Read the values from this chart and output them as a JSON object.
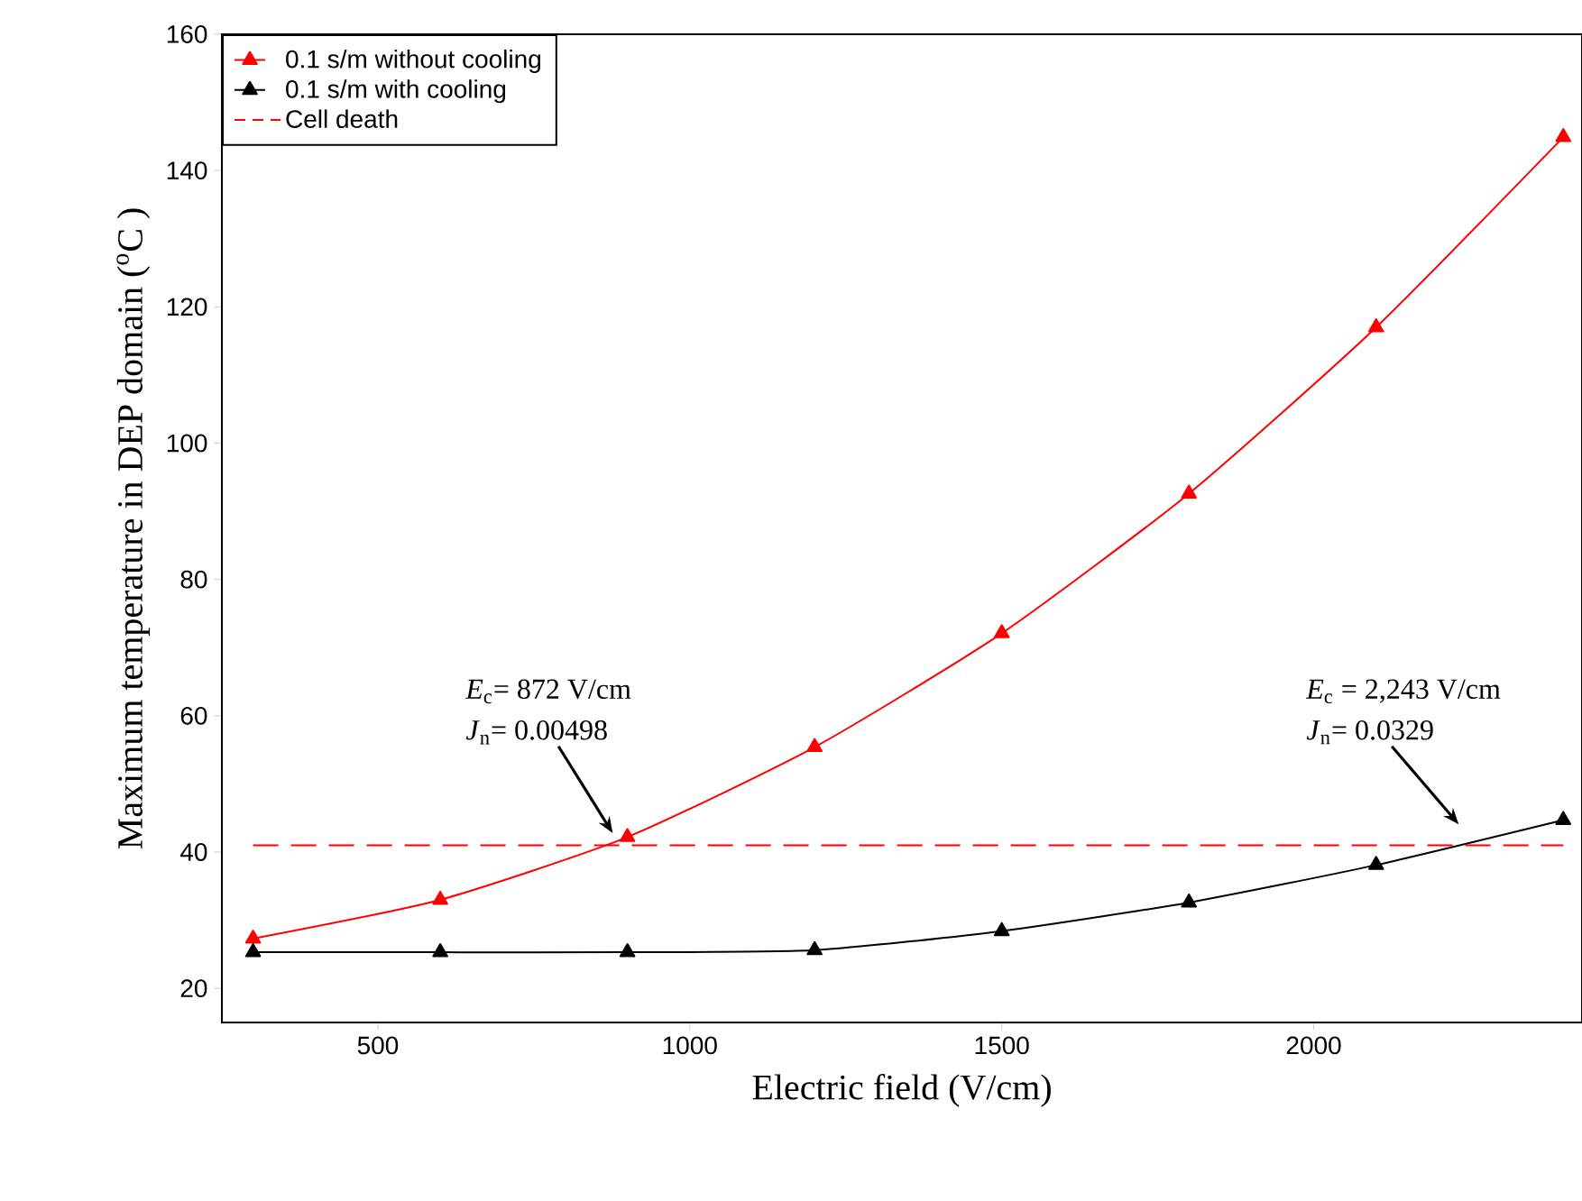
{
  "chart_data": {
    "type": "line",
    "xlabel": "Electric field (V/cm)",
    "ylabel": "Maximum temperature in DEP domain ($^{o}$C )",
    "x": [
      300,
      600,
      900,
      1200,
      1500,
      1800,
      2100,
      2400
    ],
    "series": [
      {
        "name": "0.1 s/m without cooling",
        "color": "#ff0000",
        "values": [
          27.3,
          33.0,
          42.2,
          55.4,
          72.1,
          92.6,
          117.0,
          144.9
        ]
      },
      {
        "name": "0.1 s/m with cooling",
        "color": "#000000",
        "values": [
          25.3,
          25.3,
          25.3,
          25.6,
          28.4,
          32.6,
          38.1,
          44.7
        ]
      }
    ],
    "ref_lines": [
      {
        "axis": "y",
        "value": 41,
        "label": "Cell death",
        "color": "#ff0000",
        "line_style": "dashed"
      }
    ],
    "annotations": [
      "*E*$_{c}$= 872 V/cm",
      "*J*$_{n}$= 0.00498",
      "*E*$_{c}$ = 2,243 V/cm",
      "*J*$_{n}$= 0.0329"
    ],
    "xlim": [
      250,
      2430
    ],
    "ylim": [
      15,
      160
    ],
    "xticks": [
      500,
      1000,
      1500,
      2000
    ],
    "yticks": [
      20,
      40,
      60,
      80,
      100,
      120,
      140,
      160
    ],
    "grid": false,
    "legend": "top left",
    "marker": "triangle",
    "line_style": "solid"
  }
}
